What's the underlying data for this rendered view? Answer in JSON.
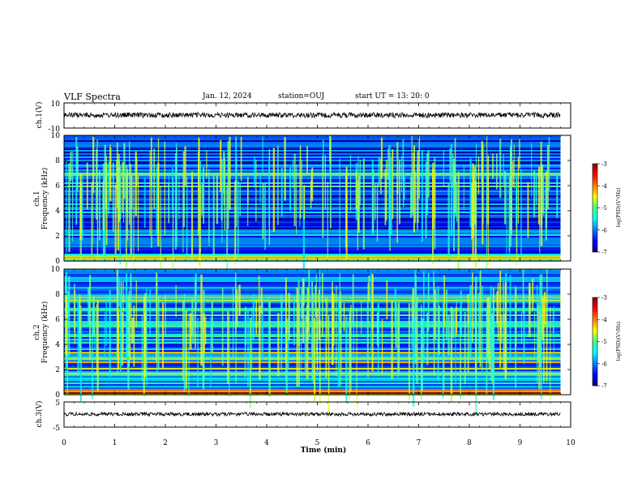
{
  "header": {
    "title": "VLF Spectra",
    "date": "Jan. 12, 2024",
    "station": "station=OUJ",
    "start": "start UT =  13: 20: 0"
  },
  "chart_data": [
    {
      "type": "line",
      "name": "ch1-waveform",
      "ylabel": "ch.1(V)",
      "ylim": [
        -10,
        10
      ],
      "yticks": [
        "10",
        "-10"
      ],
      "xlim": [
        0,
        10
      ],
      "series": [
        {
          "values_range": [
            -1.5,
            1.5
          ],
          "data_end_min": 9.8
        }
      ]
    },
    {
      "type": "heatmap",
      "name": "ch1-spectrogram",
      "ylabel": "ch.1 Frequency (kHz)",
      "ylim": [
        0,
        10
      ],
      "yticks": [
        "0",
        "2",
        "4",
        "6",
        "8",
        "10"
      ],
      "xlim": [
        0,
        10
      ],
      "data_end_min": 9.8,
      "colorbar": {
        "label": "log(PSD)(V²/Hz)",
        "range": [
          -7,
          -3
        ],
        "ticks": [
          "-3",
          "-4",
          "-5",
          "-6",
          "-7"
        ]
      }
    },
    {
      "type": "heatmap",
      "name": "ch2-spectrogram",
      "ylabel": "ch.2 Frequency (kHz)",
      "ylim": [
        0,
        10
      ],
      "yticks": [
        "0",
        "2",
        "4",
        "6",
        "8",
        "10"
      ],
      "xlim": [
        0,
        10
      ],
      "data_end_min": 9.8,
      "colorbar": {
        "label": "log(PSD)(V²/Hz)",
        "range": [
          -7,
          -3
        ],
        "ticks": [
          "-3",
          "-4",
          "-5",
          "-6",
          "-7"
        ]
      }
    },
    {
      "type": "line",
      "name": "ch3-waveform",
      "ylabel": "ch.3(V)",
      "ylim": [
        -5,
        5
      ],
      "yticks": [
        "5",
        "-5"
      ],
      "xlim": [
        0,
        10
      ],
      "series": [
        {
          "values_range": [
            -0.3,
            0.3
          ],
          "data_end_min": 9.8
        }
      ]
    }
  ],
  "xaxis": {
    "label": "Time (min)",
    "ticks": [
      "0",
      "1",
      "2",
      "3",
      "4",
      "5",
      "6",
      "7",
      "8",
      "9",
      "10"
    ]
  }
}
